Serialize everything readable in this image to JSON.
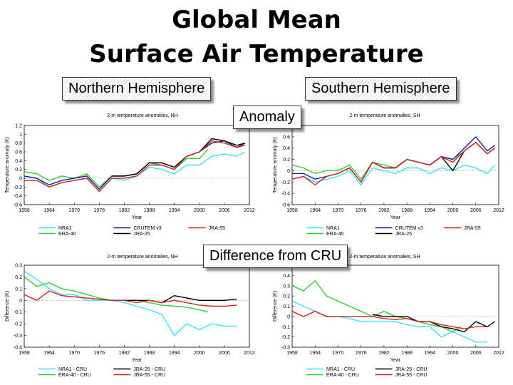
{
  "slide": {
    "title_line1": "Global Mean",
    "title_line2": "Surface Air Temperature",
    "nh_label": "Northern Hemisphere",
    "sh_label": "Southern Hemisphere",
    "anomaly_label": "Anomaly",
    "difference_label": "Difference from CRU"
  },
  "colors": {
    "NRA1": "#33e6f0",
    "ERA-40": "#33cc33",
    "CRUTEM v3": "#1a1aa0",
    "JRA-25": "#000000",
    "JRA-55": "#d42020"
  },
  "chart_data": [
    {
      "id": "nh-anomaly",
      "type": "line",
      "title": "2-m temperature anomalies, NH",
      "xlabel": "Year",
      "ylabel": "Temperature anomaly (K)",
      "xlim": [
        1958,
        2012
      ],
      "ylim": [
        -0.6,
        1.2
      ],
      "xticks": [
        1958,
        1964,
        1970,
        1976,
        1982,
        1988,
        1994,
        2000,
        2006,
        2012
      ],
      "yticks": [
        1.2,
        1,
        0.8,
        0.6,
        0.4,
        0.2,
        0,
        -0.2,
        -0.4,
        -0.6
      ],
      "legend": [
        {
          "name": "NRA1",
          "color": "#33e6f0"
        },
        {
          "name": "ERA-40",
          "color": "#33cc33"
        },
        {
          "name": "CRUTEM v3",
          "color": "#1a1aa0"
        },
        {
          "name": "JRA-25",
          "color": "#000000"
        },
        {
          "name": "JRA-55",
          "color": "#d42020"
        }
      ],
      "series": [
        {
          "name": "NRA1",
          "color": "#33e6f0",
          "x": [
            1958,
            1961,
            1964,
            1967,
            1970,
            1973,
            1976,
            1979,
            1982,
            1985,
            1988,
            1991,
            1994,
            1997,
            2000,
            2003,
            2006,
            2009,
            2011
          ],
          "y": [
            0.05,
            0.0,
            -0.2,
            -0.1,
            -0.05,
            0.0,
            -0.3,
            0.0,
            -0.05,
            0.05,
            0.25,
            0.2,
            0.1,
            0.3,
            0.3,
            0.5,
            0.55,
            0.5,
            0.6
          ]
        },
        {
          "name": "ERA-40",
          "color": "#33cc33",
          "x": [
            1958,
            1961,
            1964,
            1967,
            1970,
            1973,
            1976,
            1979,
            1982,
            1985,
            1988,
            1991,
            1994,
            1997,
            2000,
            2002
          ],
          "y": [
            0.15,
            0.1,
            -0.05,
            0.05,
            0.0,
            0.1,
            -0.2,
            0.05,
            0.05,
            0.1,
            0.35,
            0.3,
            0.2,
            0.45,
            0.45,
            0.65
          ]
        },
        {
          "name": "CRUTEM v3",
          "color": "#1a1aa0",
          "x": [
            1958,
            1961,
            1964,
            1967,
            1970,
            1973,
            1976,
            1979,
            1982,
            1985,
            1988,
            1991,
            1994,
            1997,
            2000,
            2003,
            2006,
            2009,
            2011
          ],
          "y": [
            0.05,
            0.0,
            -0.15,
            -0.05,
            0.0,
            0.05,
            -0.25,
            0.05,
            0.05,
            0.1,
            0.35,
            0.35,
            0.25,
            0.5,
            0.6,
            0.8,
            0.85,
            0.7,
            0.8
          ]
        },
        {
          "name": "JRA-25",
          "color": "#000000",
          "x": [
            1979,
            1982,
            1985,
            1988,
            1991,
            1994,
            1997,
            2000,
            2003,
            2006,
            2009,
            2011
          ],
          "y": [
            0.05,
            0.05,
            0.1,
            0.35,
            0.35,
            0.25,
            0.5,
            0.6,
            0.9,
            0.85,
            0.75,
            0.8
          ]
        },
        {
          "name": "JRA-55",
          "color": "#d42020",
          "x": [
            1958,
            1961,
            1964,
            1967,
            1970,
            1973,
            1976,
            1979,
            1982,
            1985,
            1988,
            1991,
            1994,
            1997,
            2000,
            2003,
            2006,
            2009,
            2011
          ],
          "y": [
            -0.05,
            -0.05,
            -0.2,
            -0.1,
            -0.05,
            0.0,
            -0.3,
            0.0,
            0.0,
            0.05,
            0.3,
            0.3,
            0.2,
            0.5,
            0.6,
            0.85,
            0.8,
            0.7,
            0.75
          ]
        }
      ]
    },
    {
      "id": "sh-anomaly",
      "type": "line",
      "title": "2-m temperature anomalies, SH",
      "xlabel": "Year",
      "ylabel": "Temperature anomaly (K)",
      "xlim": [
        1958,
        2012
      ],
      "ylim": [
        -0.6,
        0.8
      ],
      "xticks": [
        1958,
        1964,
        1970,
        1976,
        1982,
        1988,
        1994,
        2000,
        2006,
        2012
      ],
      "yticks": [
        0.6,
        0.4,
        0.2,
        0,
        -0.2,
        -0.4,
        -0.6
      ],
      "legend": [
        {
          "name": "NRA1",
          "color": "#33e6f0"
        },
        {
          "name": "ERA-40",
          "color": "#33cc33"
        },
        {
          "name": "CRUTEM v3",
          "color": "#1a1aa0"
        },
        {
          "name": "JRA-25",
          "color": "#000000"
        },
        {
          "name": "JRA-55",
          "color": "#d42020"
        }
      ],
      "series": [
        {
          "name": "NRA1",
          "color": "#33e6f0",
          "x": [
            1958,
            1961,
            1964,
            1967,
            1970,
            1973,
            1976,
            1979,
            1982,
            1985,
            1988,
            1991,
            1994,
            1997,
            2000,
            2003,
            2006,
            2009,
            2011
          ],
          "y": [
            -0.15,
            -0.1,
            -0.2,
            -0.15,
            -0.1,
            0.0,
            -0.25,
            0.05,
            0.0,
            -0.05,
            0.05,
            0.05,
            -0.05,
            0.05,
            0.0,
            0.1,
            0.05,
            -0.05,
            0.1
          ]
        },
        {
          "name": "ERA-40",
          "color": "#33cc33",
          "x": [
            1958,
            1961,
            1964,
            1967,
            1970,
            1973,
            1976,
            1979,
            1982,
            1985,
            1988,
            1991,
            1994,
            1997,
            2000,
            2002
          ],
          "y": [
            0.1,
            0.05,
            -0.05,
            0.0,
            0.0,
            0.1,
            -0.15,
            0.15,
            0.1,
            0.05,
            0.2,
            0.15,
            0.1,
            0.25,
            0.2,
            0.3
          ]
        },
        {
          "name": "CRUTEM v3",
          "color": "#1a1aa0",
          "x": [
            1958,
            1961,
            1964,
            1967,
            1970,
            1973,
            1976,
            1979,
            1982,
            1985,
            1988,
            1991,
            1994,
            1997,
            2000,
            2003,
            2006,
            2009,
            2011
          ],
          "y": [
            -0.05,
            -0.05,
            -0.15,
            -0.1,
            -0.05,
            0.05,
            -0.2,
            0.15,
            0.05,
            0.05,
            0.2,
            0.15,
            0.1,
            0.25,
            0.2,
            0.4,
            0.6,
            0.35,
            0.45
          ]
        },
        {
          "name": "JRA-25",
          "color": "#000000",
          "x": [
            1979,
            1982,
            1985,
            1988,
            1991,
            1994,
            1997,
            2000,
            2003,
            2006,
            2009,
            2011
          ],
          "y": [
            0.15,
            0.05,
            0.05,
            0.2,
            0.15,
            0.1,
            0.25,
            0.0,
            0.35,
            0.5,
            0.3,
            0.4
          ]
        },
        {
          "name": "JRA-55",
          "color": "#d42020",
          "x": [
            1958,
            1961,
            1964,
            1967,
            1970,
            1973,
            1976,
            1979,
            1982,
            1985,
            1988,
            1991,
            1994,
            1997,
            2000,
            2003,
            2006,
            2009,
            2011
          ],
          "y": [
            -0.15,
            -0.1,
            -0.25,
            -0.1,
            -0.05,
            0.05,
            -0.2,
            0.15,
            0.05,
            0.05,
            0.2,
            0.15,
            0.1,
            0.25,
            0.15,
            0.35,
            0.5,
            0.3,
            0.4
          ]
        }
      ]
    },
    {
      "id": "nh-difference",
      "type": "line",
      "title": "2-m temperature anomalies, NH",
      "xlabel": "Year",
      "ylabel": "Difference (K)",
      "xlim": [
        1958,
        2012
      ],
      "ylim": [
        -0.4,
        0.3
      ],
      "xticks": [
        1958,
        1964,
        1970,
        1976,
        1982,
        1988,
        1994,
        2000,
        2006,
        2012
      ],
      "yticks": [
        0.3,
        0.2,
        0.1,
        0,
        -0.1,
        -0.2,
        -0.3,
        -0.4
      ],
      "legend": [
        {
          "name": "NRA1 - CRU",
          "color": "#33e6f0"
        },
        {
          "name": "ERA-40 - CRU",
          "color": "#33cc33"
        },
        {
          "name": "JRA-25 - CRU",
          "color": "#000000"
        },
        {
          "name": "JRA-55 - CRU",
          "color": "#d42020"
        }
      ],
      "series": [
        {
          "name": "NRA1 - CRU",
          "color": "#33e6f0",
          "x": [
            1958,
            1961,
            1964,
            1967,
            1970,
            1973,
            1976,
            1979,
            1982,
            1985,
            1988,
            1991,
            1994,
            1997,
            2000,
            2003,
            2006,
            2009
          ],
          "y": [
            0.25,
            0.18,
            0.1,
            0.05,
            0.05,
            0.0,
            0.0,
            0.0,
            -0.02,
            -0.05,
            -0.08,
            -0.12,
            -0.3,
            -0.2,
            -0.25,
            -0.2,
            -0.22,
            -0.22
          ]
        },
        {
          "name": "ERA-40 - CRU",
          "color": "#33cc33",
          "x": [
            1958,
            1961,
            1964,
            1967,
            1970,
            1973,
            1976,
            1979,
            1982,
            1985,
            1988,
            1991,
            1994,
            1997,
            2000,
            2002
          ],
          "y": [
            0.2,
            0.12,
            0.15,
            0.1,
            0.08,
            0.05,
            0.02,
            0.0,
            0.0,
            0.0,
            -0.02,
            -0.04,
            -0.05,
            -0.06,
            -0.08,
            -0.1
          ]
        },
        {
          "name": "JRA-25 - CRU",
          "color": "#000000",
          "x": [
            1979,
            1982,
            1985,
            1988,
            1991,
            1994,
            1997,
            2000,
            2003,
            2006,
            2009
          ],
          "y": [
            0.0,
            0.0,
            0.0,
            0.0,
            -0.02,
            0.04,
            0.02,
            0.0,
            0.0,
            0.0,
            0.01
          ]
        },
        {
          "name": "JRA-55 - CRU",
          "color": "#d42020",
          "x": [
            1958,
            1961,
            1964,
            1967,
            1979,
            1982,
            1985,
            1988,
            1991,
            1994,
            1997,
            2000,
            2003,
            2006,
            2009
          ],
          "y": [
            0.05,
            0.0,
            0.08,
            0.04,
            0.0,
            0.0,
            -0.02,
            0.0,
            -0.02,
            0.0,
            -0.02,
            -0.04,
            -0.05,
            -0.05,
            -0.04
          ]
        }
      ]
    },
    {
      "id": "sh-difference",
      "type": "line",
      "title": "2-m temperature anomalies, SH",
      "xlabel": "Year",
      "ylabel": "Difference (K)",
      "xlim": [
        1958,
        2012
      ],
      "ylim": [
        -0.3,
        0.5
      ],
      "xticks": [
        1958,
        1964,
        1970,
        1976,
        1982,
        1988,
        1994,
        2000,
        2006,
        2012
      ],
      "yticks": [
        0.4,
        0.3,
        0.2,
        0.1,
        0,
        -0.1,
        -0.2,
        -0.3
      ],
      "legend": [
        {
          "name": "NRA1 - CRU",
          "color": "#33e6f0"
        },
        {
          "name": "ERA-40 - CRU",
          "color": "#33cc33"
        },
        {
          "name": "JRA-25 - CRU",
          "color": "#000000"
        },
        {
          "name": "JRA-55 - CRU",
          "color": "#d42020"
        }
      ],
      "series": [
        {
          "name": "NRA1 - CRU",
          "color": "#33e6f0",
          "x": [
            1958,
            1961,
            1964,
            1967,
            1970,
            1973,
            1976,
            1979,
            1982,
            1985,
            1988,
            1991,
            1994,
            1997,
            2000,
            2003,
            2006,
            2009
          ],
          "y": [
            0.15,
            0.1,
            0.05,
            0.0,
            0.0,
            -0.02,
            -0.05,
            -0.05,
            -0.05,
            -0.05,
            -0.08,
            -0.1,
            -0.1,
            -0.2,
            -0.15,
            -0.2,
            -0.25,
            -0.25
          ]
        },
        {
          "name": "ERA-40 - CRU",
          "color": "#33cc33",
          "x": [
            1958,
            1961,
            1964,
            1967,
            1970,
            1973,
            1976,
            1979,
            1982,
            1985,
            1988,
            1991,
            1994,
            1997,
            2000,
            2002
          ],
          "y": [
            0.3,
            0.25,
            0.35,
            0.2,
            0.15,
            0.1,
            0.05,
            0.0,
            0.05,
            0.0,
            -0.02,
            -0.05,
            -0.08,
            -0.1,
            -0.15,
            -0.1
          ]
        },
        {
          "name": "JRA-25 - CRU",
          "color": "#000000",
          "x": [
            1979,
            1982,
            1985,
            1988,
            1991,
            1994,
            1997,
            2000,
            2003,
            2006,
            2009,
            2011
          ],
          "y": [
            0.02,
            0.0,
            0.0,
            0.0,
            -0.05,
            -0.05,
            -0.1,
            -0.12,
            -0.15,
            -0.05,
            -0.1,
            -0.05
          ]
        },
        {
          "name": "JRA-55 - CRU",
          "color": "#d42020",
          "x": [
            1958,
            1961,
            1964,
            1967,
            1979,
            1982,
            1985,
            1988,
            1991,
            1994,
            1997,
            2000,
            2003,
            2006,
            2009
          ],
          "y": [
            0.05,
            0.0,
            0.05,
            0.0,
            0.0,
            -0.02,
            -0.03,
            -0.02,
            -0.05,
            -0.05,
            -0.08,
            -0.1,
            -0.12,
            -0.1,
            -0.1
          ]
        }
      ]
    }
  ]
}
